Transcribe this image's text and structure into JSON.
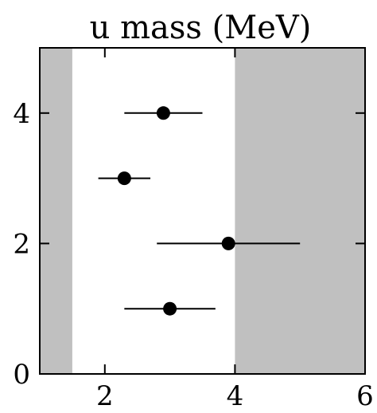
{
  "chart_data": {
    "type": "scatter",
    "title": "u mass (MeV)",
    "xlabel": "",
    "ylabel": "",
    "xlim": [
      1,
      6
    ],
    "ylim": [
      0,
      5
    ],
    "x_ticks": [
      2,
      4,
      6
    ],
    "y_ticks": [
      0,
      2,
      4
    ],
    "x_tick_labels": [
      "2",
      "4",
      "6"
    ],
    "y_tick_labels": [
      "0",
      "2",
      "4"
    ],
    "grid": false,
    "error_bars": "horizontal",
    "excluded_regions": [
      {
        "from": 1,
        "to": 1.5
      },
      {
        "from": 4,
        "to": 6
      }
    ],
    "points": [
      {
        "y": 4,
        "x": 2.9,
        "x_low": 2.3,
        "x_high": 3.5
      },
      {
        "y": 3,
        "x": 2.3,
        "x_low": 1.9,
        "x_high": 2.7
      },
      {
        "y": 2,
        "x": 3.9,
        "x_low": 2.8,
        "x_high": 5.0
      },
      {
        "y": 1,
        "x": 3.0,
        "x_low": 2.3,
        "x_high": 3.7
      }
    ],
    "colors": {
      "shade": "#c0c0c0",
      "marker": "#000000",
      "axis": "#000000"
    }
  }
}
